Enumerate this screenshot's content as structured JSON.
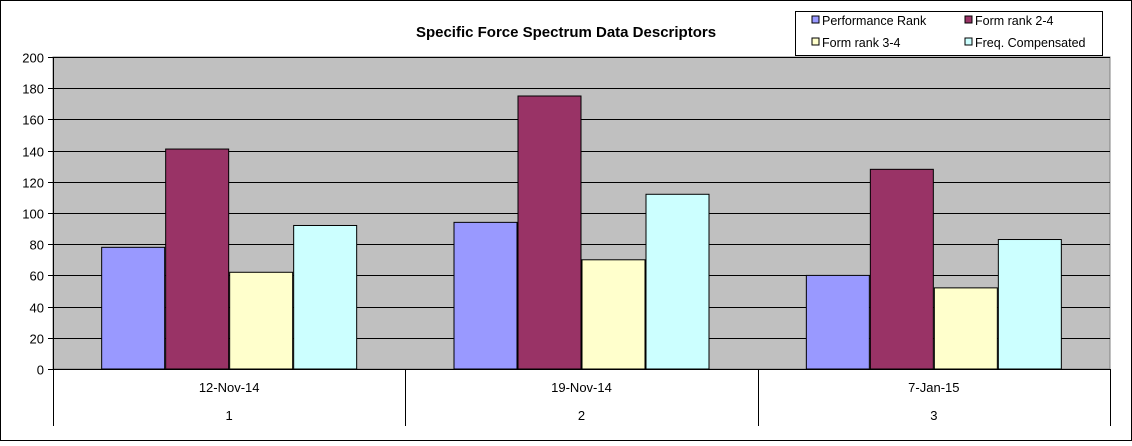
{
  "colors": {
    "plot_bg": "#c0c0c0",
    "grid": "#000000",
    "series": [
      "#9999ff",
      "#993366",
      "#ffffcc",
      "#ccffff"
    ]
  },
  "chart_data": {
    "type": "bar",
    "title": "Specific Force Spectrum Data Descriptors",
    "xlabel": "",
    "ylabel": "",
    "ylim": [
      0,
      200
    ],
    "yticks": [
      0,
      20,
      40,
      60,
      80,
      100,
      120,
      140,
      160,
      180,
      200
    ],
    "grid": true,
    "legend_position": "top-right",
    "categories": [
      {
        "date": "12-Nov-14",
        "index": "1"
      },
      {
        "date": "19-Nov-14",
        "index": "2"
      },
      {
        "date": "7-Jan-15",
        "index": "3"
      }
    ],
    "series": [
      {
        "name": "Performance Rank",
        "values": [
          78,
          94,
          60
        ]
      },
      {
        "name": "Form rank 2-4",
        "values": [
          141,
          175,
          128
        ]
      },
      {
        "name": "Form rank 3-4",
        "values": [
          62,
          70,
          52
        ]
      },
      {
        "name": "Freq. Compensated",
        "values": [
          92,
          112,
          83
        ]
      }
    ]
  }
}
